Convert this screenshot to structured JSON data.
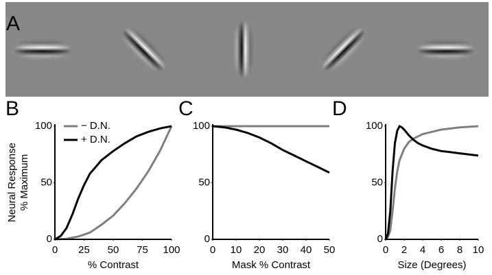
{
  "panel_a": {
    "label": "A"
  },
  "chart_data": [
    {
      "type": "line",
      "label": "B",
      "xlabel": "% Contrast",
      "ylabel": [
        "Neural Response",
        "% Maximum"
      ],
      "xlim": [
        0,
        100
      ],
      "ylim": [
        0,
        100
      ],
      "xticks": [
        0,
        25,
        50,
        75,
        100
      ],
      "yticks": [
        0,
        50,
        100
      ],
      "legend": "upper left",
      "series": [
        {
          "name": "− D.N.",
          "color": "#7f7f7f",
          "x": [
            0,
            10,
            20,
            30,
            40,
            50,
            60,
            70,
            80,
            90,
            100
          ],
          "values": [
            0,
            0.5,
            2.5,
            6,
            13,
            21,
            32,
            45,
            60,
            78,
            100
          ]
        },
        {
          "name": "+ D.N.",
          "color": "#000000",
          "x": [
            0,
            5,
            10,
            15,
            20,
            25,
            30,
            40,
            50,
            60,
            70,
            80,
            90,
            100
          ],
          "values": [
            0,
            3,
            10,
            22,
            36,
            48,
            58,
            70,
            78,
            85,
            91,
            95,
            98,
            100
          ]
        }
      ]
    },
    {
      "type": "line",
      "label": "C",
      "xlabel": "Mask % Contrast",
      "xlim": [
        0,
        50
      ],
      "ylim": [
        0,
        100
      ],
      "xticks": [
        0,
        10,
        20,
        30,
        40,
        50
      ],
      "yticks": [
        0,
        50,
        100
      ],
      "series": [
        {
          "color": "#7f7f7f",
          "x": [
            0,
            50
          ],
          "values": [
            100,
            100
          ]
        },
        {
          "color": "#000000",
          "x": [
            0,
            5,
            10,
            15,
            20,
            25,
            30,
            35,
            40,
            45,
            50
          ],
          "values": [
            100,
            99,
            97,
            94,
            90,
            85,
            79,
            74,
            69,
            64,
            59
          ]
        }
      ]
    },
    {
      "type": "line",
      "label": "D",
      "xlabel": "Size (Degrees)",
      "xlim": [
        0,
        10
      ],
      "ylim": [
        0,
        100
      ],
      "xticks": [
        0,
        2,
        4,
        6,
        8,
        10
      ],
      "yticks": [
        0,
        50,
        100
      ],
      "series": [
        {
          "color": "#7f7f7f",
          "x": [
            0,
            0.25,
            0.5,
            0.75,
            1,
            1.25,
            1.5,
            2,
            2.5,
            3,
            4,
            5,
            6,
            8,
            10
          ],
          "values": [
            0,
            2,
            8,
            25,
            45,
            60,
            70,
            80,
            86,
            89,
            93,
            95,
            97,
            99,
            100
          ]
        },
        {
          "color": "#000000",
          "x": [
            0,
            0.25,
            0.5,
            0.75,
            1,
            1.25,
            1.5,
            1.75,
            2,
            2.5,
            3,
            3.5,
            4,
            5,
            6,
            7,
            8,
            9,
            10
          ],
          "values": [
            0,
            5,
            25,
            60,
            85,
            96,
            100,
            99,
            97,
            92,
            88,
            85,
            83,
            80,
            78,
            77,
            76,
            75,
            74
          ]
        }
      ]
    }
  ]
}
